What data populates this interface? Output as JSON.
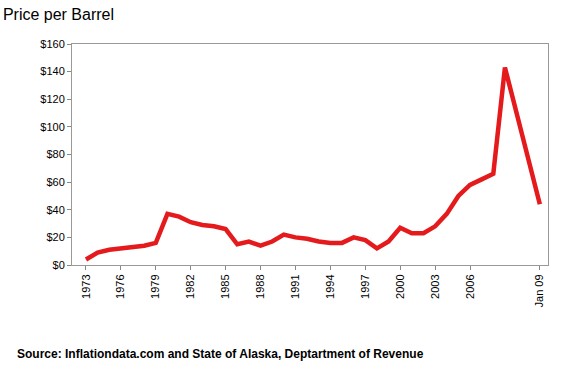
{
  "chart_data": {
    "type": "line",
    "title": "Price per Barrel",
    "annotations": [
      "Source: Inflationdata.com and State of Alaska, Deptartment of Revenue"
    ],
    "categories": [
      "1973",
      null,
      null,
      "1976",
      null,
      null,
      "1979",
      null,
      null,
      "1982",
      null,
      null,
      "1985",
      null,
      null,
      "1988",
      null,
      null,
      "1991",
      null,
      null,
      "1994",
      null,
      null,
      "1997",
      null,
      null,
      "2000",
      null,
      null,
      "2003",
      null,
      null,
      "2006",
      null,
      null,
      null,
      null,
      null,
      "Jan 09"
    ],
    "values": [
      4,
      9,
      11,
      12,
      13,
      14,
      16,
      37,
      35,
      31,
      29,
      28,
      26,
      15,
      17,
      14,
      17,
      22,
      20,
      19,
      17,
      16,
      16,
      20,
      18,
      12,
      17,
      27,
      23,
      23,
      28,
      37,
      50,
      58,
      62,
      66,
      143,
      110,
      77,
      44
    ],
    "color": "#e41a1c",
    "ylim": [
      0,
      160
    ],
    "yticks": [
      {
        "value": 0,
        "label": "$0"
      },
      {
        "value": 20,
        "label": "$20"
      },
      {
        "value": 40,
        "label": "$40"
      },
      {
        "value": 60,
        "label": "$60"
      },
      {
        "value": 80,
        "label": "$80"
      },
      {
        "value": 100,
        "label": "$100"
      },
      {
        "value": 120,
        "label": "$120"
      },
      {
        "value": 140,
        "label": "$140"
      },
      {
        "value": 160,
        "label": "$160"
      }
    ],
    "grid": false
  }
}
